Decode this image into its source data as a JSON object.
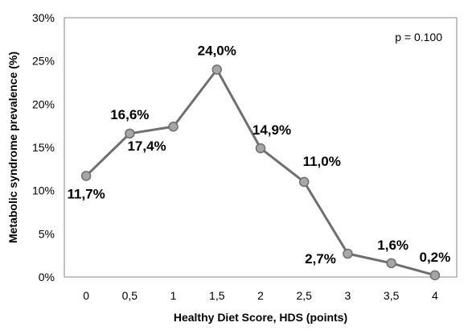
{
  "chart_data": {
    "type": "line",
    "x": [
      "0",
      "0,5",
      "1",
      "1,5",
      "2",
      "2,5",
      "3",
      "3,5",
      "4"
    ],
    "series": [
      {
        "values": [
          11.7,
          16.6,
          17.4,
          24.0,
          14.9,
          11.0,
          2.7,
          1.6,
          0.2
        ],
        "labels": [
          "11,7%",
          "16,6%",
          "17,4%",
          "24,0%",
          "14,9%",
          "11,0%",
          "2,7%",
          "1,6%",
          "0,2%"
        ],
        "color": "#6f6f6f",
        "marker_fill": "#a6a6a6"
      }
    ],
    "xlabel": "Healthy Diet Score, HDS (points)",
    "ylabel": "Metabolic syndrome prevalence (%)",
    "ylim": [
      0,
      30
    ],
    "yticks": [
      "0%",
      "5%",
      "10%",
      "15%",
      "20%",
      "25%",
      "30%"
    ],
    "annotation": "p = 0.100",
    "grid": false,
    "legend": "none"
  }
}
